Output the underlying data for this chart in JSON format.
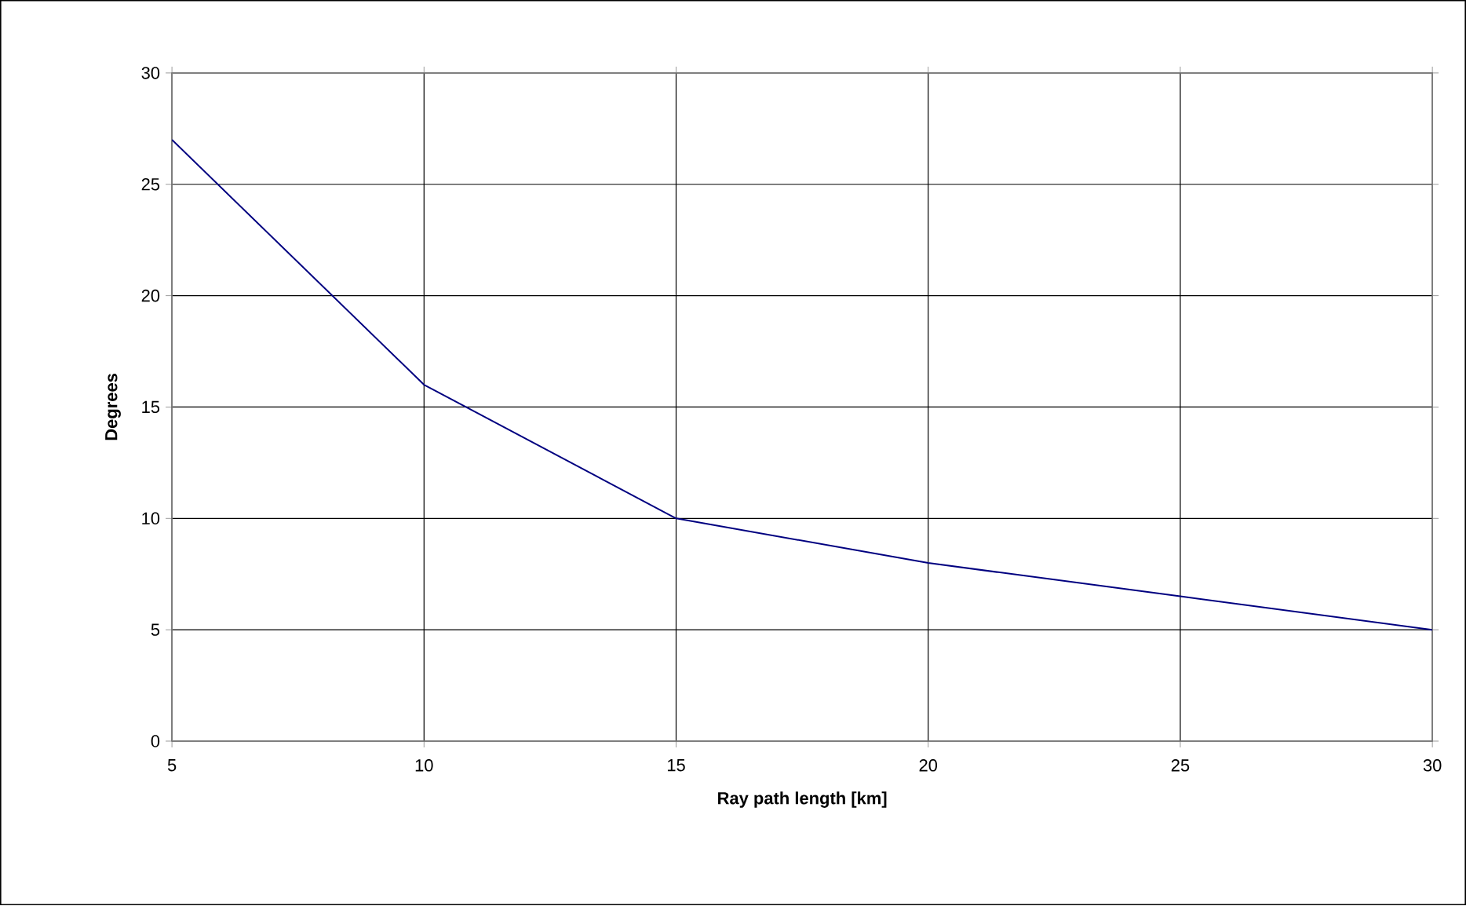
{
  "chart_data": {
    "type": "line",
    "xlabel": "Ray path length [km]",
    "ylabel": "Degrees",
    "x": [
      5,
      10,
      15,
      20,
      25,
      30
    ],
    "series": [
      {
        "color": "#000080",
        "values": [
          27,
          16,
          10,
          8,
          6.5,
          5
        ]
      }
    ],
    "xlim": [
      5,
      30
    ],
    "ylim": [
      0,
      30
    ],
    "xticks": [
      5,
      10,
      15,
      20,
      25,
      30
    ],
    "yticks": [
      0,
      5,
      10,
      15,
      20,
      25,
      30
    ],
    "grid": true,
    "marker": "none",
    "line_style": "solid"
  }
}
